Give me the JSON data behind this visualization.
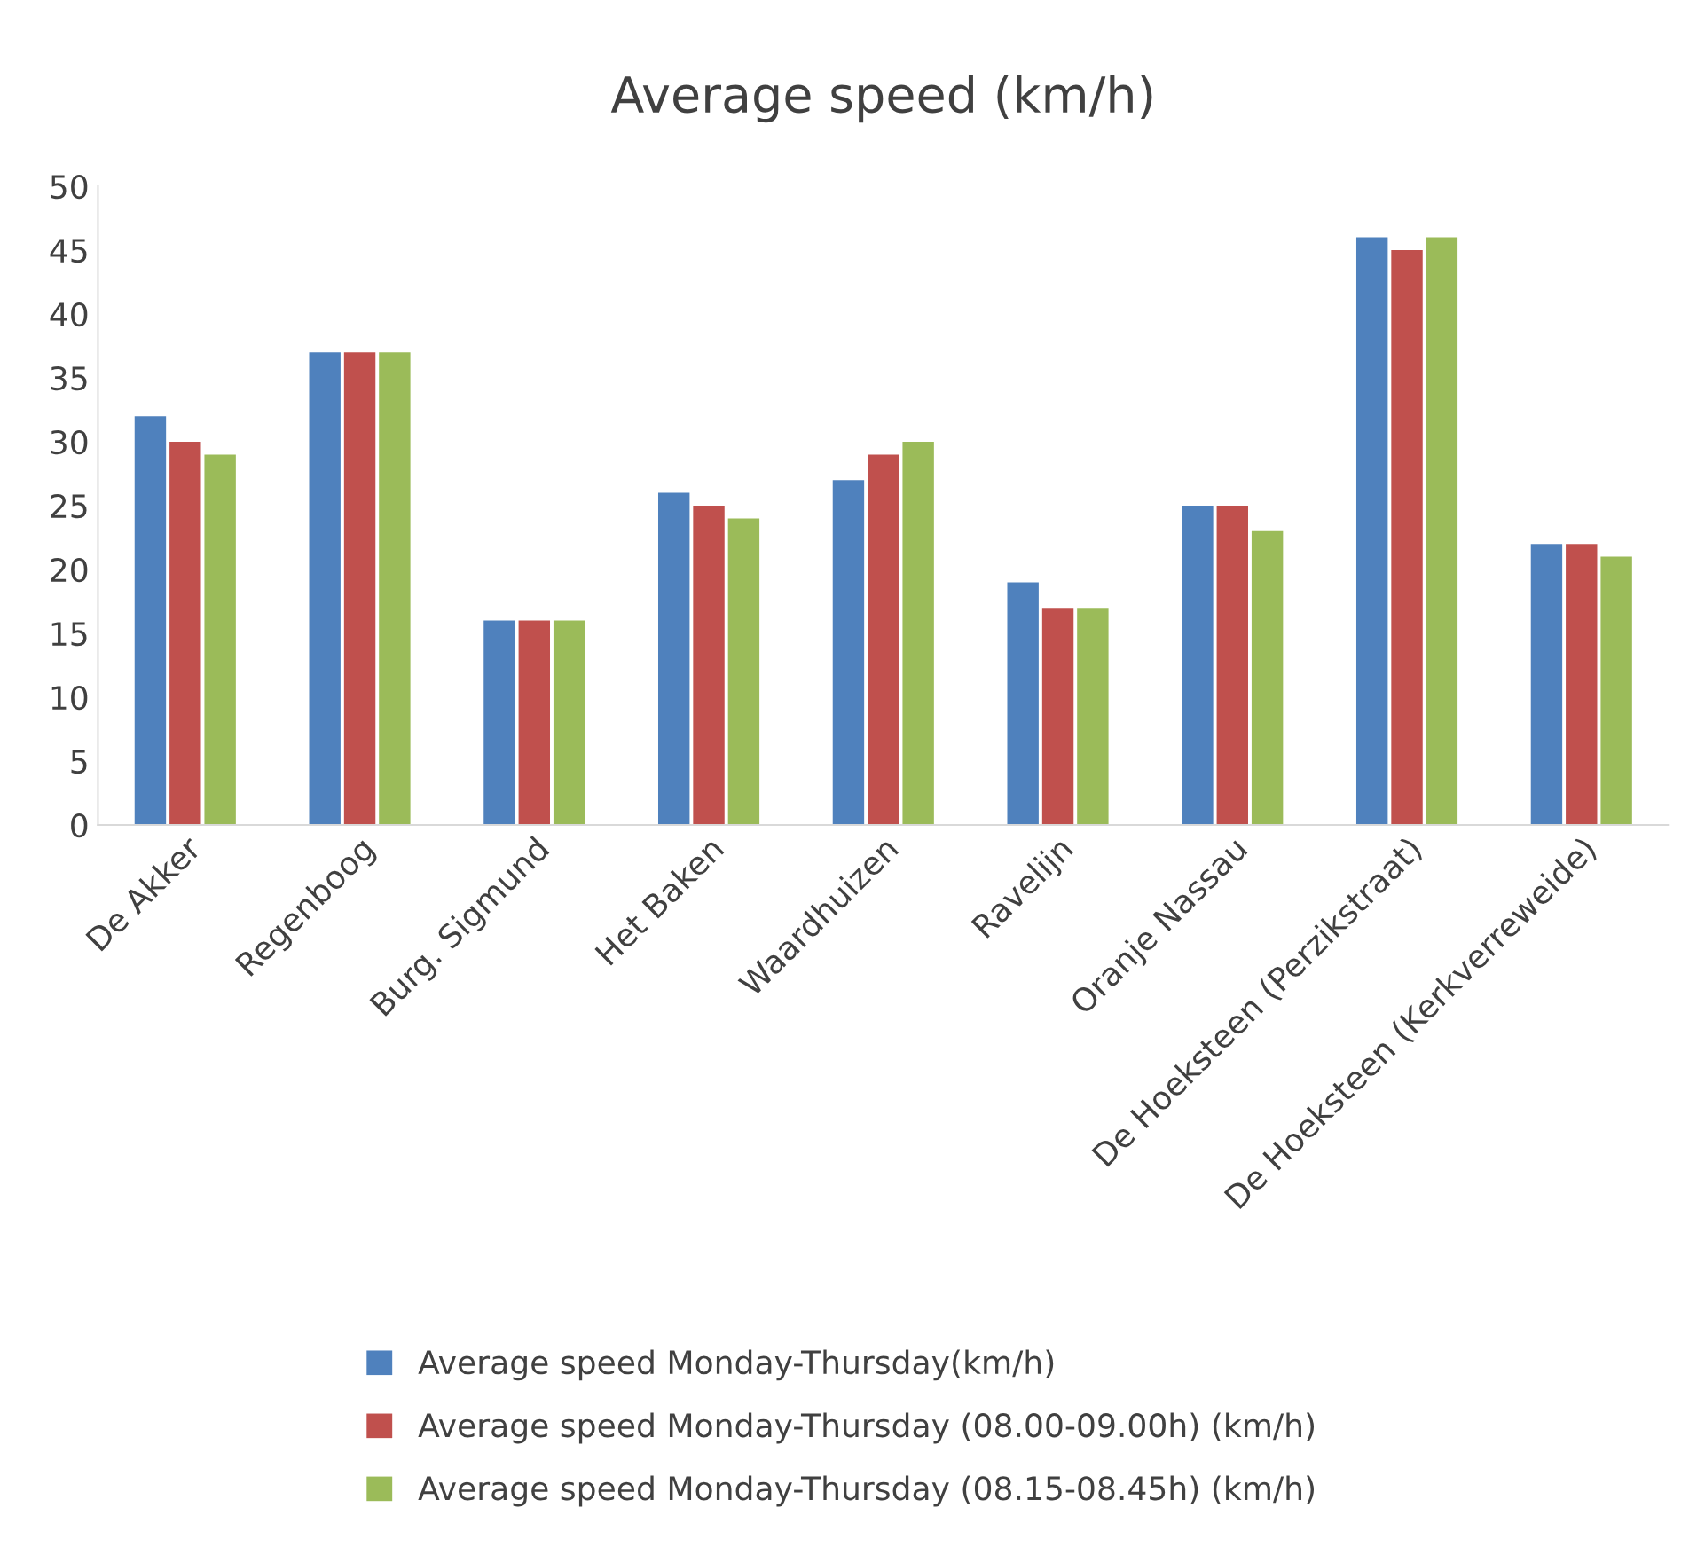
{
  "chart_data": {
    "type": "bar",
    "title": "Average speed (km/h)",
    "categories": [
      "De Akker",
      "Regenboog",
      "Burg. Sigmund",
      "Het Baken",
      "Waardhuizen",
      "Ravelijn",
      "Oranje Nassau",
      "De Hoeksteen (Perzikstraat)",
      "De Hoeksteen (Kerkverreweide)"
    ],
    "series": [
      {
        "name": "Average speed Monday-Thursday(km/h)",
        "color": "#4f81bd",
        "values": [
          32,
          37,
          16,
          26,
          27,
          19,
          25,
          46,
          22
        ]
      },
      {
        "name": "Average speed Monday-Thursday (08.00-09.00h) (km/h)",
        "color": "#c0504d",
        "values": [
          30,
          37,
          16,
          25,
          29,
          17,
          25,
          45,
          22
        ]
      },
      {
        "name": "Average speed Monday-Thursday (08.15-08.45h) (km/h)",
        "color": "#9bbb59",
        "values": [
          29,
          37,
          16,
          24,
          30,
          17,
          23,
          46,
          21
        ]
      }
    ],
    "ylim": [
      0,
      50
    ],
    "yticks": [
      0,
      5,
      10,
      15,
      20,
      25,
      30,
      35,
      40,
      45,
      50
    ],
    "grid": false,
    "legend": "bottom"
  }
}
